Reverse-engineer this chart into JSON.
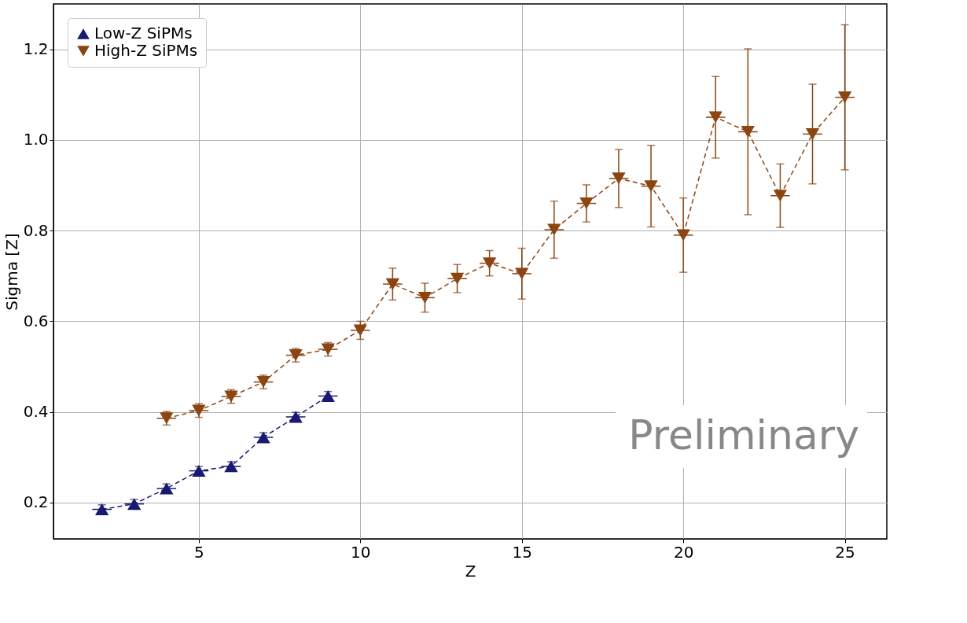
{
  "chart_data": {
    "type": "line",
    "xlabel": "Z",
    "ylabel": "Sigma [Z]",
    "xlim": [
      0.5,
      26.3
    ],
    "ylim": [
      0.12,
      1.3
    ],
    "xticks": [
      5,
      10,
      15,
      20,
      25
    ],
    "yticks": [
      0.2,
      0.4,
      0.6,
      0.8,
      {
        "value": 1,
        "label": "1.0"
      },
      1.2
    ],
    "grid": true,
    "legend": "top left",
    "line_style": "dashed",
    "annotations": [
      "Preliminary"
    ],
    "series": [
      {
        "name": "Low-Z SiPMs",
        "color": "#191970",
        "marker": "triangle-up",
        "x": [
          2,
          3,
          4,
          5,
          6,
          7,
          8,
          9
        ],
        "values": [
          0.185,
          0.197,
          0.231,
          0.27,
          0.28,
          0.344,
          0.389,
          0.435
        ],
        "errors": [
          0.01,
          0.01,
          0.01,
          0.01,
          0.01,
          0.01,
          0.01,
          0.01
        ],
        "xerrors": [
          0.3,
          0.3,
          0.3,
          0.3,
          0.3,
          0.3,
          0.3,
          0.3
        ]
      },
      {
        "name": "High-Z SiPMs",
        "color": "#8b4513",
        "marker": "triangle-down",
        "x": [
          4,
          5,
          6,
          7,
          8,
          9,
          10,
          11,
          12,
          13,
          14,
          15,
          16,
          17,
          18,
          19,
          20,
          21,
          22,
          23,
          24,
          25
        ],
        "values": [
          0.386,
          0.403,
          0.434,
          0.466,
          0.525,
          0.538,
          0.58,
          0.682,
          0.652,
          0.694,
          0.728,
          0.705,
          0.802,
          0.86,
          0.915,
          0.898,
          0.79,
          1.05,
          1.018,
          0.877,
          1.013,
          1.094
        ],
        "errors": [
          0.015,
          0.015,
          0.015,
          0.015,
          0.015,
          0.015,
          0.02,
          0.035,
          0.032,
          0.031,
          0.028,
          0.056,
          0.063,
          0.041,
          0.064,
          0.09,
          0.082,
          0.09,
          0.183,
          0.07,
          0.11,
          0.16
        ],
        "xerrors": [
          0.3,
          0.3,
          0.3,
          0.3,
          0.3,
          0.3,
          0.3,
          0.3,
          0.3,
          0.3,
          0.3,
          0.3,
          0.3,
          0.3,
          0.3,
          0.3,
          0.3,
          0.3,
          0.3,
          0.3,
          0.3,
          0.3
        ]
      }
    ]
  }
}
